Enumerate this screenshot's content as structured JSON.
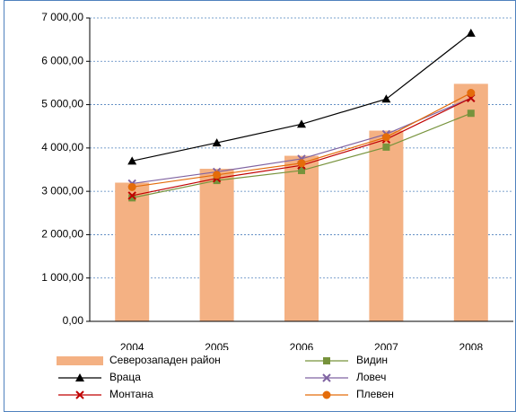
{
  "chart_data": {
    "type": "bar_line",
    "categories": [
      "2004",
      "2005",
      "2006",
      "2007",
      "2008"
    ],
    "ylim": [
      0,
      7000
    ],
    "yticks": [
      {
        "value": 0,
        "label": "0,00"
      },
      {
        "value": 1000,
        "label": "1 000,00"
      },
      {
        "value": 2000,
        "label": "2 000,00"
      },
      {
        "value": 3000,
        "label": "3 000,00"
      },
      {
        "value": 4000,
        "label": "4 000,00"
      },
      {
        "value": 5000,
        "label": "5 000,00"
      },
      {
        "value": 6000,
        "label": "6 000,00"
      },
      {
        "value": 7000,
        "label": "7 000,00"
      }
    ],
    "grid": true,
    "series": [
      {
        "name": "Северозападен район",
        "type": "bar",
        "color": "#f4b183",
        "values": [
          3200,
          3520,
          3820,
          4400,
          5480
        ]
      },
      {
        "name": "Видин",
        "type": "line",
        "marker": "square",
        "color": "#77933c",
        "values": [
          2850,
          3250,
          3480,
          4020,
          4800
        ]
      },
      {
        "name": "Враца",
        "type": "line",
        "marker": "triangle",
        "color": "#000000",
        "values": [
          3700,
          4120,
          4550,
          5130,
          6650
        ]
      },
      {
        "name": "Ловеч",
        "type": "line",
        "marker": "x",
        "color": "#8064a2",
        "values": [
          3180,
          3450,
          3750,
          4320,
          5150
        ]
      },
      {
        "name": "Монтана",
        "type": "line",
        "marker": "x",
        "color": "#c00000",
        "values": [
          2900,
          3300,
          3600,
          4200,
          5150
        ]
      },
      {
        "name": "Плевен",
        "type": "line",
        "marker": "circle",
        "color": "#e46c0a",
        "values": [
          3100,
          3380,
          3650,
          4250,
          5270
        ]
      }
    ]
  }
}
